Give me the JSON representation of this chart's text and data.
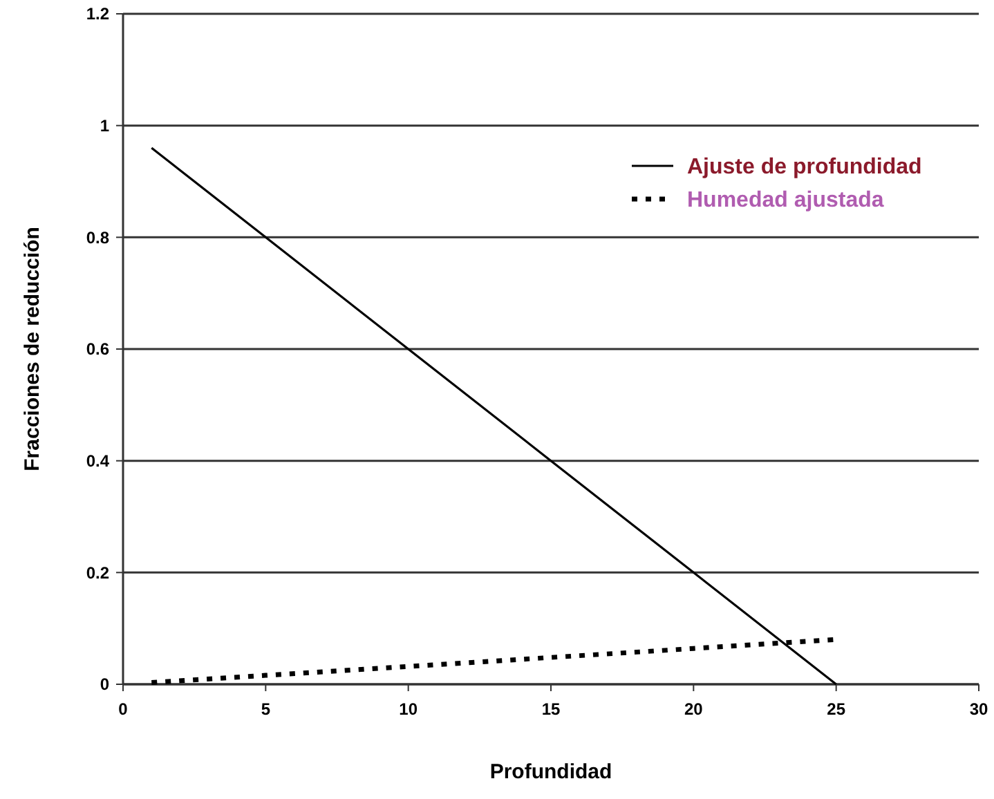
{
  "chart_data": {
    "type": "line",
    "xlabel": "Profundidad",
    "ylabel": "Fracciones de reducción",
    "xlim": [
      0,
      30
    ],
    "xticks": [
      0,
      5,
      10,
      15,
      20,
      25,
      30
    ],
    "ylim": [
      0,
      1.2
    ],
    "yticks": [
      0,
      0.2,
      0.4,
      0.6,
      0.8,
      1,
      1.2
    ],
    "grid": "y",
    "legend": "top right",
    "series": [
      {
        "name": "Ajuste de profundidad",
        "color": "#000000",
        "line_style": "solid",
        "x": [
          1,
          5,
          10,
          15,
          20,
          25
        ],
        "values": [
          0.96,
          0.8,
          0.6,
          0.4,
          0.2,
          0
        ]
      },
      {
        "name": "Humedad ajustada",
        "color": "#000000",
        "line_style": "dotted",
        "x": [
          1,
          5,
          10,
          15,
          20,
          25
        ],
        "values": [
          0.003,
          0.016,
          0.032,
          0.048,
          0.064,
          0.08
        ]
      }
    ]
  }
}
